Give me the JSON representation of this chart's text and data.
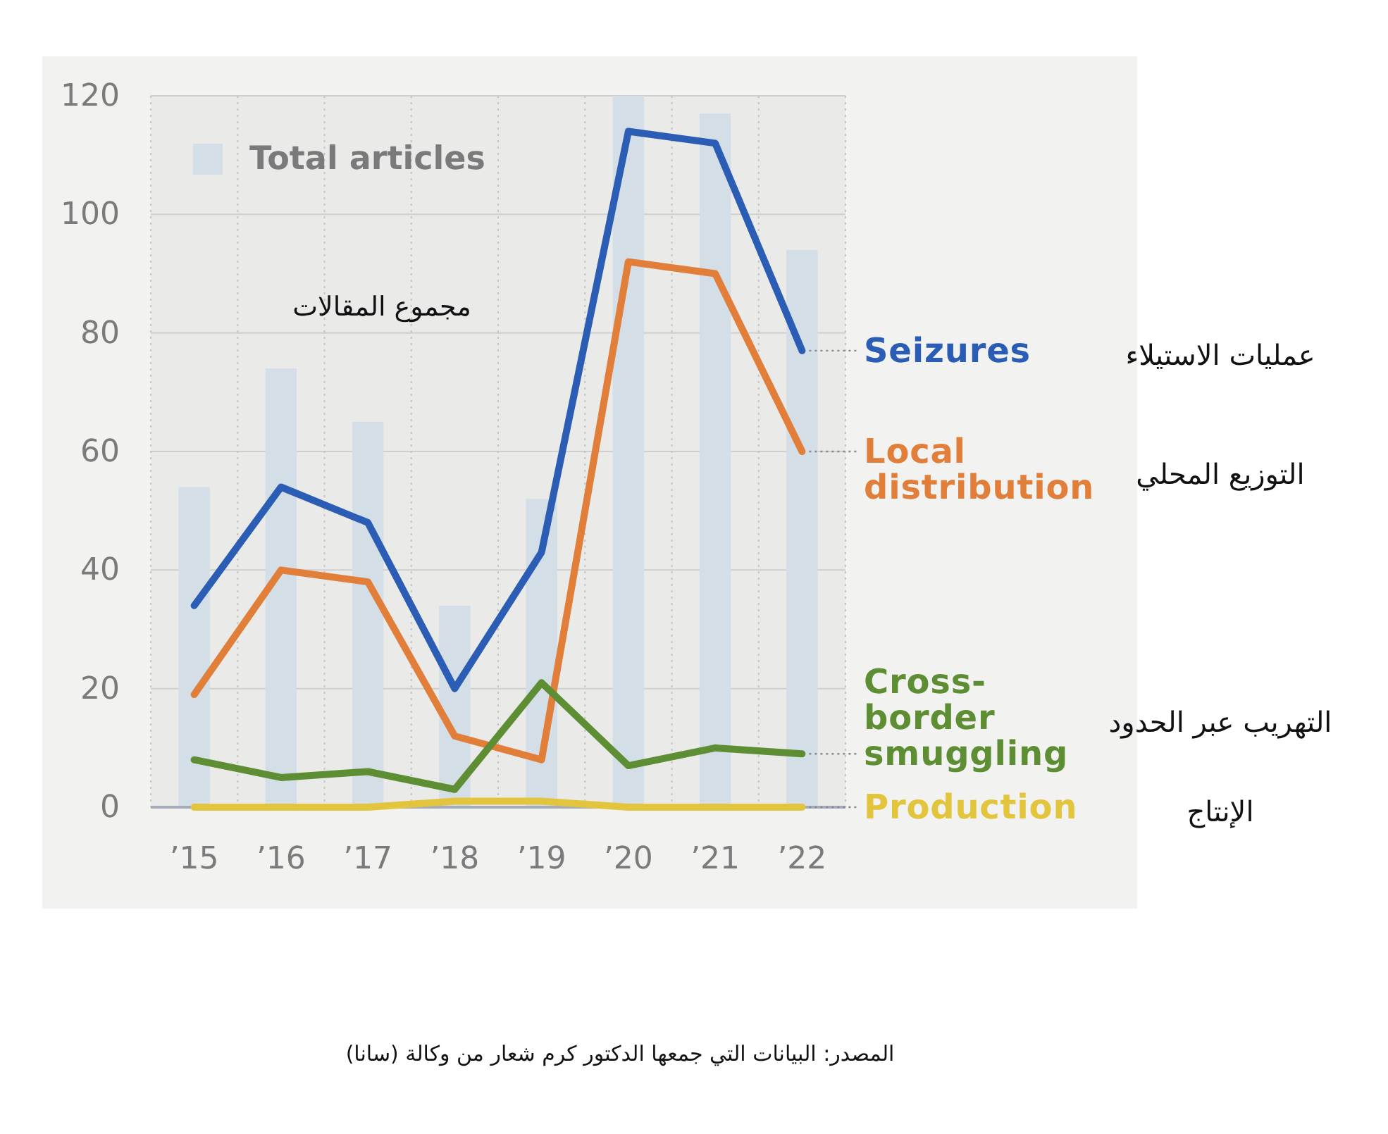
{
  "chart_data": {
    "type": "line",
    "categories": [
      "’15",
      "’16",
      "’17",
      "’18",
      "’19",
      "’20",
      "’21",
      "’22"
    ],
    "series": [
      {
        "name": "Total articles",
        "type": "bar",
        "color": "#d3dee7",
        "values": [
          54,
          74,
          65,
          34,
          52,
          120,
          117,
          94
        ]
      },
      {
        "name": "Seizures",
        "color": "#2c5db5",
        "values": [
          34,
          54,
          48,
          20,
          43,
          114,
          112,
          77
        ]
      },
      {
        "name": "Local distribution",
        "color": "#e07e3a",
        "values": [
          19,
          40,
          38,
          12,
          8,
          92,
          90,
          60
        ]
      },
      {
        "name": "Cross-border smuggling",
        "color": "#5e8e34",
        "values": [
          8,
          5,
          6,
          3,
          21,
          7,
          10,
          9
        ]
      },
      {
        "name": "Production",
        "color": "#e2c53c",
        "values": [
          0,
          0,
          0,
          1,
          1,
          0,
          0,
          0
        ]
      }
    ],
    "ylim": [
      0,
      120
    ],
    "yticks": [
      0,
      20,
      40,
      60,
      80,
      100,
      120
    ],
    "grid": true,
    "legend": "top left",
    "annotations": [
      "مجموع المقالات",
      "عمليات الاستيلاء",
      "التوزيع المحلي",
      "التهريب عبر الحدود",
      "الإنتاج",
      "المصدر: البيانات التي جمعها الدكتور كرم شعار من وكالة (سانا)"
    ]
  }
}
